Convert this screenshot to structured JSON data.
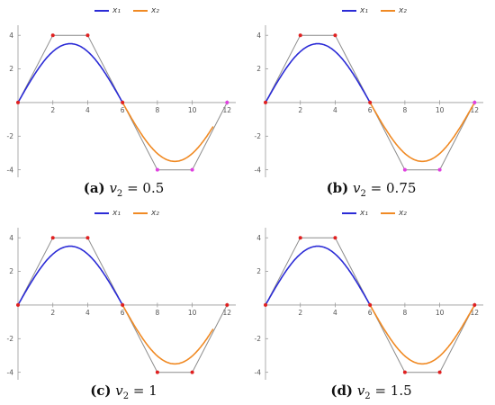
{
  "chart_data": [
    {
      "type": "line",
      "panel": "a",
      "caption_tag": "(a)",
      "caption_var": "v",
      "caption_sub": "2",
      "caption_eq": " = 0.5",
      "legend": [
        {
          "label": "x₁",
          "color": "#2b2bd6"
        },
        {
          "label": "x₂",
          "color": "#f08a24"
        }
      ],
      "xlim": [
        0,
        12.5
      ],
      "ylim": [
        -4.5,
        4.6
      ],
      "xticks": [
        2,
        4,
        6,
        8,
        10,
        12
      ],
      "yticks": [
        -4,
        -2,
        2,
        4
      ],
      "control_polygon": [
        [
          0,
          0
        ],
        [
          2,
          4
        ],
        [
          4,
          4
        ],
        [
          6,
          0
        ],
        [
          8,
          -4
        ],
        [
          10,
          -4
        ],
        [
          12,
          0
        ]
      ],
      "control_points": [
        {
          "x": 0,
          "y": 0,
          "color": "#e02020"
        },
        {
          "x": 2,
          "y": 4,
          "color": "#e02020"
        },
        {
          "x": 4,
          "y": 4,
          "color": "#e02020"
        },
        {
          "x": 6,
          "y": 0,
          "color": "#e02020"
        },
        {
          "x": 8,
          "y": -4,
          "color": "#e040e0"
        },
        {
          "x": 10,
          "y": -4,
          "color": "#e040e0"
        },
        {
          "x": 12,
          "y": 0,
          "color": "#e040e0"
        }
      ],
      "curve_end_x": 11.2
    },
    {
      "type": "line",
      "panel": "b",
      "caption_tag": "(b)",
      "caption_var": "v",
      "caption_sub": "2",
      "caption_eq": " = 0.75",
      "legend": [
        {
          "label": "x₁",
          "color": "#2b2bd6"
        },
        {
          "label": "x₂",
          "color": "#f08a24"
        }
      ],
      "xlim": [
        0,
        12.5
      ],
      "ylim": [
        -4.5,
        4.6
      ],
      "xticks": [
        2,
        4,
        6,
        8,
        10,
        12
      ],
      "yticks": [
        -4,
        -2,
        2,
        4
      ],
      "control_polygon": [
        [
          0,
          0
        ],
        [
          2,
          4
        ],
        [
          4,
          4
        ],
        [
          6,
          0
        ],
        [
          8,
          -4
        ],
        [
          10,
          -4
        ],
        [
          12,
          0
        ]
      ],
      "control_points": [
        {
          "x": 0,
          "y": 0,
          "color": "#e02020"
        },
        {
          "x": 2,
          "y": 4,
          "color": "#e02020"
        },
        {
          "x": 4,
          "y": 4,
          "color": "#e02020"
        },
        {
          "x": 6,
          "y": 0,
          "color": "#e02020"
        },
        {
          "x": 8,
          "y": -4,
          "color": "#e040e0"
        },
        {
          "x": 10,
          "y": -4,
          "color": "#e040e0"
        },
        {
          "x": 12,
          "y": 0,
          "color": "#e040e0"
        }
      ],
      "curve_end_x": 12
    },
    {
      "type": "line",
      "panel": "c",
      "caption_tag": "(c)",
      "caption_var": "v",
      "caption_sub": "2",
      "caption_eq": " = 1",
      "legend": [
        {
          "label": "x₁",
          "color": "#2b2bd6"
        },
        {
          "label": "x₂",
          "color": "#f08a24"
        }
      ],
      "xlim": [
        0,
        12.5
      ],
      "ylim": [
        -4.5,
        4.6
      ],
      "xticks": [
        2,
        4,
        6,
        8,
        10,
        12
      ],
      "yticks": [
        -4,
        -2,
        2,
        4
      ],
      "control_polygon": [
        [
          0,
          0
        ],
        [
          2,
          4
        ],
        [
          4,
          4
        ],
        [
          6,
          0
        ],
        [
          8,
          -4
        ],
        [
          10,
          -4
        ],
        [
          12,
          0
        ]
      ],
      "control_points": [
        {
          "x": 0,
          "y": 0,
          "color": "#e02020"
        },
        {
          "x": 2,
          "y": 4,
          "color": "#e02020"
        },
        {
          "x": 4,
          "y": 4,
          "color": "#e02020"
        },
        {
          "x": 6,
          "y": 0,
          "color": "#e02020"
        },
        {
          "x": 8,
          "y": -4,
          "color": "#e02020"
        },
        {
          "x": 10,
          "y": -4,
          "color": "#e02020"
        },
        {
          "x": 12,
          "y": 0,
          "color": "#e02020"
        }
      ],
      "curve_end_x": 11.2
    },
    {
      "type": "line",
      "panel": "d",
      "caption_tag": "(d)",
      "caption_var": "v",
      "caption_sub": "2",
      "caption_eq": " = 1.5",
      "legend": [
        {
          "label": "x₁",
          "color": "#2b2bd6"
        },
        {
          "label": "x₂",
          "color": "#f08a24"
        }
      ],
      "xlim": [
        0,
        12.5
      ],
      "ylim": [
        -4.5,
        4.6
      ],
      "xticks": [
        2,
        4,
        6,
        8,
        10,
        12
      ],
      "yticks": [
        -4,
        -2,
        2,
        4
      ],
      "control_polygon": [
        [
          0,
          0
        ],
        [
          2,
          4
        ],
        [
          4,
          4
        ],
        [
          6,
          0
        ],
        [
          8,
          -4
        ],
        [
          10,
          -4
        ],
        [
          12,
          0
        ]
      ],
      "control_points": [
        {
          "x": 0,
          "y": 0,
          "color": "#e02020"
        },
        {
          "x": 2,
          "y": 4,
          "color": "#e02020"
        },
        {
          "x": 4,
          "y": 4,
          "color": "#e02020"
        },
        {
          "x": 6,
          "y": 0,
          "color": "#e02020"
        },
        {
          "x": 8,
          "y": -4,
          "color": "#e02020"
        },
        {
          "x": 10,
          "y": -4,
          "color": "#e02020"
        },
        {
          "x": 12,
          "y": 0,
          "color": "#e02020"
        }
      ],
      "curve_end_x": 12
    }
  ]
}
